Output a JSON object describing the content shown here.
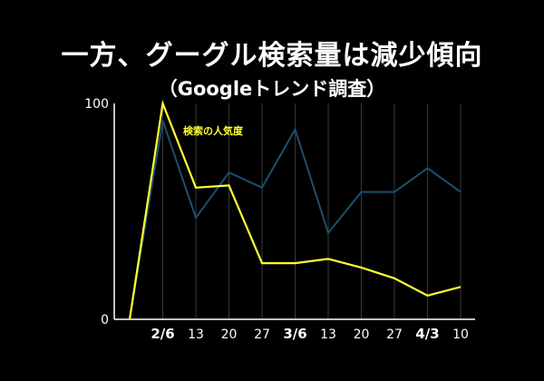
{
  "chart_data": {
    "type": "line",
    "title": "一方、グーグル検索量は減少傾向",
    "subtitle": "（Googleトレンド調査）",
    "categories": [
      "",
      "2/6",
      "13",
      "20",
      "27",
      "3/6",
      "13",
      "20",
      "27",
      "4/3",
      "10"
    ],
    "month_starts": [
      1,
      5,
      9
    ],
    "ylim": [
      0,
      100
    ],
    "y_ticks": [
      "0",
      "100"
    ],
    "grid": "vertical",
    "series": [
      {
        "name": "",
        "color": "#1b4f6e",
        "values": [
          0,
          92,
          47,
          68,
          61,
          88,
          40,
          59,
          59,
          70,
          59
        ]
      },
      {
        "name": "",
        "color": "#ffff33",
        "values": [
          0,
          100,
          61,
          62,
          26,
          26,
          28,
          24,
          19,
          11,
          15
        ]
      }
    ],
    "annotation": {
      "text": "検索の人気度",
      "color": "#ffff33"
    }
  }
}
